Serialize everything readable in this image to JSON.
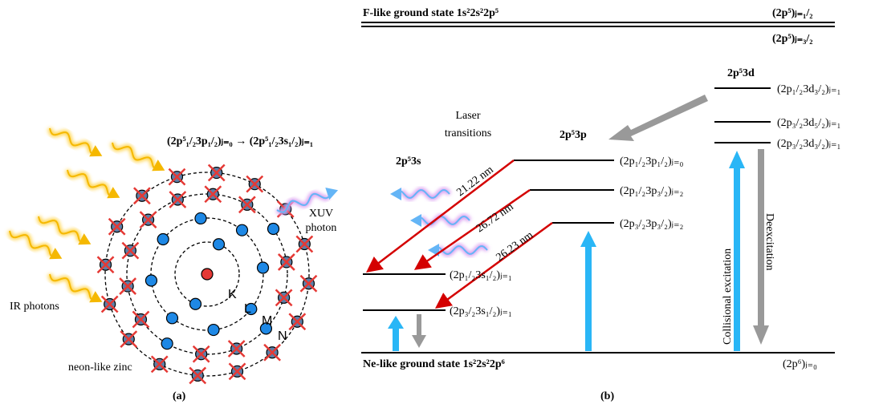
{
  "panel_a": {
    "transition": "(2p⁵₁/₂3p₁/₂)ⱼ₌₀ → (2p⁵₁/₂3s₁/₂)ⱼ₌₁",
    "xuv_photon": [
      "XUV",
      "photon"
    ],
    "ir_photons": "IR photons",
    "ion": "neon-like zinc",
    "shells": [
      "K",
      "L",
      "M",
      "N"
    ],
    "caption": "(a)"
  },
  "panel_b": {
    "f_ground": "F-like ground state 1s²2s²2p⁵",
    "f_j12": "(2p⁵)ⱼ₌₁/₂",
    "f_j32": "(2p⁵)ⱼ₌₃/₂",
    "config_3d": "2p⁵3d",
    "levels_3d": [
      "(2p₁/₂3d₃/₂)ⱼ₌₁",
      "(2p₃/₂3d₅/₂)ⱼ₌₁",
      "(2p₃/₂3d₃/₂)ⱼ₌₁"
    ],
    "laser_transitions": [
      "Laser",
      "transitions"
    ],
    "config_3p": "2p⁵3p",
    "levels_3p": [
      "(2p₁/₂3p₁/₂)ⱼ₌₀",
      "(2p₁/₂3p₃/₂)ⱼ₌₂",
      "(2p₃/₂3p₃/₂)ⱼ₌₂"
    ],
    "config_3s": "2p⁵3s",
    "levels_3s": [
      "(2p₁/₂3s₁/₂)ⱼ₌₁",
      "(2p₃/₂3s₁/₂)ⱼ₌₁"
    ],
    "wavelengths": [
      "21.22 nm",
      "26.72 nm",
      "26.23 nm"
    ],
    "collisional": "Collisional excitation",
    "deexcitation": "Deexcitation",
    "ne_ground": "Ne-like ground state 1s²2s²2p⁶",
    "ne_j0": "(2p⁶)ⱼ₌₀",
    "caption": "(b)"
  }
}
